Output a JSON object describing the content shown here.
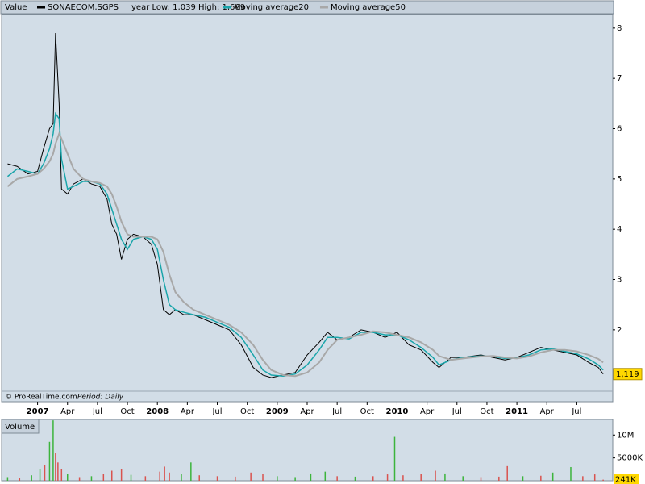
{
  "chart_data": [
    {
      "type": "line",
      "header": "Value",
      "range_note": "year Low: 1,039 High: 1,669",
      "credit": "© ProRealTime.com",
      "period": "Period: Daily",
      "last_label": {
        "value": 1.119,
        "label": "1,119"
      },
      "xlim": [
        2006.7,
        2011.8
      ],
      "ylim": [
        0.57,
        8.27
      ],
      "yticks": [
        2,
        3,
        4,
        5,
        6,
        7,
        8
      ],
      "xticks": [
        {
          "value": 2007,
          "label": "2007"
        },
        {
          "value": 2007.25,
          "label": "Apr"
        },
        {
          "value": 2007.5,
          "label": "Jul"
        },
        {
          "value": 2007.75,
          "label": "Oct"
        },
        {
          "value": 2008,
          "label": "2008"
        },
        {
          "value": 2008.25,
          "label": "Apr"
        },
        {
          "value": 2008.5,
          "label": "Jul"
        },
        {
          "value": 2008.75,
          "label": "Oct"
        },
        {
          "value": 2009,
          "label": "2009"
        },
        {
          "value": 2009.25,
          "label": "Apr"
        },
        {
          "value": 2009.5,
          "label": "Jul"
        },
        {
          "value": 2009.75,
          "label": "Oct"
        },
        {
          "value": 2010,
          "label": "2010"
        },
        {
          "value": 2010.25,
          "label": "Apr"
        },
        {
          "value": 2010.5,
          "label": "Jul"
        },
        {
          "value": 2010.75,
          "label": "Oct"
        },
        {
          "value": 2011,
          "label": "2011"
        },
        {
          "value": 2011.25,
          "label": "Apr"
        },
        {
          "value": 2011.5,
          "label": "Jul"
        }
      ],
      "x": [
        2006.75,
        2006.83,
        2006.92,
        2007.0,
        2007.05,
        2007.1,
        2007.13,
        2007.15,
        2007.18,
        2007.2,
        2007.25,
        2007.3,
        2007.38,
        2007.45,
        2007.52,
        2007.58,
        2007.62,
        2007.66,
        2007.7,
        2007.75,
        2007.8,
        2007.88,
        2007.95,
        2008.0,
        2008.05,
        2008.1,
        2008.15,
        2008.22,
        2008.3,
        2008.4,
        2008.5,
        2008.6,
        2008.7,
        2008.8,
        2008.88,
        2008.95,
        2009.05,
        2009.15,
        2009.25,
        2009.35,
        2009.42,
        2009.5,
        2009.6,
        2009.7,
        2009.8,
        2009.9,
        2010.0,
        2010.1,
        2010.2,
        2010.3,
        2010.35,
        2010.45,
        2010.55,
        2010.7,
        2010.8,
        2010.9,
        2011.0,
        2011.1,
        2011.2,
        2011.3,
        2011.4,
        2011.5,
        2011.6,
        2011.68,
        2011.72
      ],
      "series": [
        {
          "name": "SONAECOM,SGPS",
          "color": "#000000",
          "width": 1,
          "values": [
            5.3,
            5.25,
            5.1,
            5.15,
            5.6,
            6.0,
            6.1,
            7.9,
            6.5,
            4.8,
            4.7,
            4.9,
            5.0,
            4.9,
            4.85,
            4.6,
            4.1,
            3.9,
            3.4,
            3.8,
            3.9,
            3.85,
            3.7,
            3.3,
            2.4,
            2.3,
            2.4,
            2.3,
            2.3,
            2.2,
            2.1,
            2.0,
            1.7,
            1.25,
            1.1,
            1.05,
            1.1,
            1.15,
            1.5,
            1.75,
            1.95,
            1.8,
            1.85,
            2.0,
            1.95,
            1.85,
            1.95,
            1.7,
            1.6,
            1.35,
            1.25,
            1.45,
            1.45,
            1.5,
            1.45,
            1.4,
            1.45,
            1.55,
            1.65,
            1.6,
            1.55,
            1.5,
            1.35,
            1.25,
            1.12
          ]
        },
        {
          "name": "Moving average20",
          "color": "#1aa5aa",
          "width": 1.5,
          "values": [
            5.05,
            5.2,
            5.15,
            5.1,
            5.3,
            5.6,
            5.9,
            6.3,
            6.2,
            5.4,
            4.8,
            4.85,
            4.95,
            4.95,
            4.9,
            4.7,
            4.4,
            4.1,
            3.8,
            3.6,
            3.8,
            3.85,
            3.8,
            3.6,
            3.0,
            2.5,
            2.4,
            2.35,
            2.3,
            2.25,
            2.15,
            2.05,
            1.85,
            1.5,
            1.2,
            1.1,
            1.08,
            1.12,
            1.3,
            1.6,
            1.85,
            1.85,
            1.82,
            1.95,
            1.95,
            1.9,
            1.9,
            1.8,
            1.65,
            1.45,
            1.3,
            1.4,
            1.45,
            1.48,
            1.47,
            1.43,
            1.44,
            1.5,
            1.6,
            1.62,
            1.57,
            1.52,
            1.42,
            1.3,
            1.2
          ]
        },
        {
          "name": "Moving average50",
          "color": "#a8a8a8",
          "width": 2,
          "values": [
            4.85,
            5.0,
            5.05,
            5.1,
            5.2,
            5.35,
            5.5,
            5.7,
            5.9,
            5.8,
            5.5,
            5.2,
            5.0,
            4.95,
            4.92,
            4.85,
            4.7,
            4.45,
            4.15,
            3.9,
            3.85,
            3.85,
            3.85,
            3.8,
            3.55,
            3.1,
            2.75,
            2.55,
            2.4,
            2.3,
            2.2,
            2.1,
            1.95,
            1.7,
            1.4,
            1.2,
            1.1,
            1.08,
            1.15,
            1.35,
            1.6,
            1.8,
            1.85,
            1.9,
            1.97,
            1.95,
            1.9,
            1.85,
            1.75,
            1.6,
            1.48,
            1.4,
            1.43,
            1.47,
            1.48,
            1.45,
            1.43,
            1.47,
            1.55,
            1.6,
            1.6,
            1.57,
            1.5,
            1.42,
            1.35
          ]
        }
      ]
    },
    {
      "type": "bar",
      "header": "Volume",
      "xlim": [
        2006.7,
        2011.8
      ],
      "ylim": [
        0,
        13400000
      ],
      "yticks": [
        {
          "value": 10000000,
          "label": "10M"
        },
        {
          "value": 5000000,
          "label": "5000K"
        }
      ],
      "last_label": {
        "value": 241000,
        "label": "241K"
      },
      "x": [
        2006.75,
        2006.85,
        2006.95,
        2007.02,
        2007.06,
        2007.1,
        2007.13,
        2007.15,
        2007.17,
        2007.2,
        2007.25,
        2007.35,
        2007.45,
        2007.55,
        2007.62,
        2007.7,
        2007.78,
        2007.9,
        2008.02,
        2008.06,
        2008.1,
        2008.2,
        2008.28,
        2008.35,
        2008.5,
        2008.65,
        2008.78,
        2008.88,
        2009.0,
        2009.15,
        2009.28,
        2009.4,
        2009.5,
        2009.65,
        2009.8,
        2009.92,
        2009.98,
        2010.05,
        2010.2,
        2010.32,
        2010.4,
        2010.55,
        2010.7,
        2010.85,
        2010.92,
        2011.05,
        2011.2,
        2011.3,
        2011.45,
        2011.55,
        2011.65,
        2011.72
      ],
      "values": [
        800000,
        600000,
        1200000,
        2500000,
        3500000,
        8500000,
        13200000,
        6000000,
        4000000,
        2500000,
        1500000,
        800000,
        1000000,
        1500000,
        2200000,
        2500000,
        1300000,
        1000000,
        2000000,
        3100000,
        1800000,
        1500000,
        4000000,
        1200000,
        1000000,
        900000,
        1800000,
        1500000,
        1000000,
        800000,
        1600000,
        2000000,
        1000000,
        900000,
        1000000,
        1400000,
        9600000,
        1200000,
        1500000,
        2200000,
        1600000,
        1000000,
        800000,
        900000,
        3200000,
        1000000,
        1100000,
        1800000,
        3000000,
        1000000,
        1400000,
        241000
      ],
      "colors": [
        "#3cb43c",
        "#d9534f",
        "#3cb43c",
        "#3cb43c",
        "#d9534f",
        "#3cb43c",
        "#3cb43c",
        "#d9534f",
        "#d9534f",
        "#d9534f",
        "#3cb43c",
        "#d9534f",
        "#3cb43c",
        "#d9534f",
        "#d9534f",
        "#d9534f",
        "#3cb43c",
        "#d9534f",
        "#d9534f",
        "#d9534f",
        "#d9534f",
        "#3cb43c",
        "#3cb43c",
        "#d9534f",
        "#d9534f",
        "#d9534f",
        "#d9534f",
        "#d9534f",
        "#3cb43c",
        "#3cb43c",
        "#3cb43c",
        "#3cb43c",
        "#d9534f",
        "#3cb43c",
        "#d9534f",
        "#d9534f",
        "#3cb43c",
        "#d9534f",
        "#d9534f",
        "#d9534f",
        "#3cb43c",
        "#3cb43c",
        "#d9534f",
        "#d9534f",
        "#d9534f",
        "#3cb43c",
        "#d9534f",
        "#3cb43c",
        "#3cb43c",
        "#d9534f",
        "#d9534f",
        "#d9534f"
      ]
    }
  ]
}
